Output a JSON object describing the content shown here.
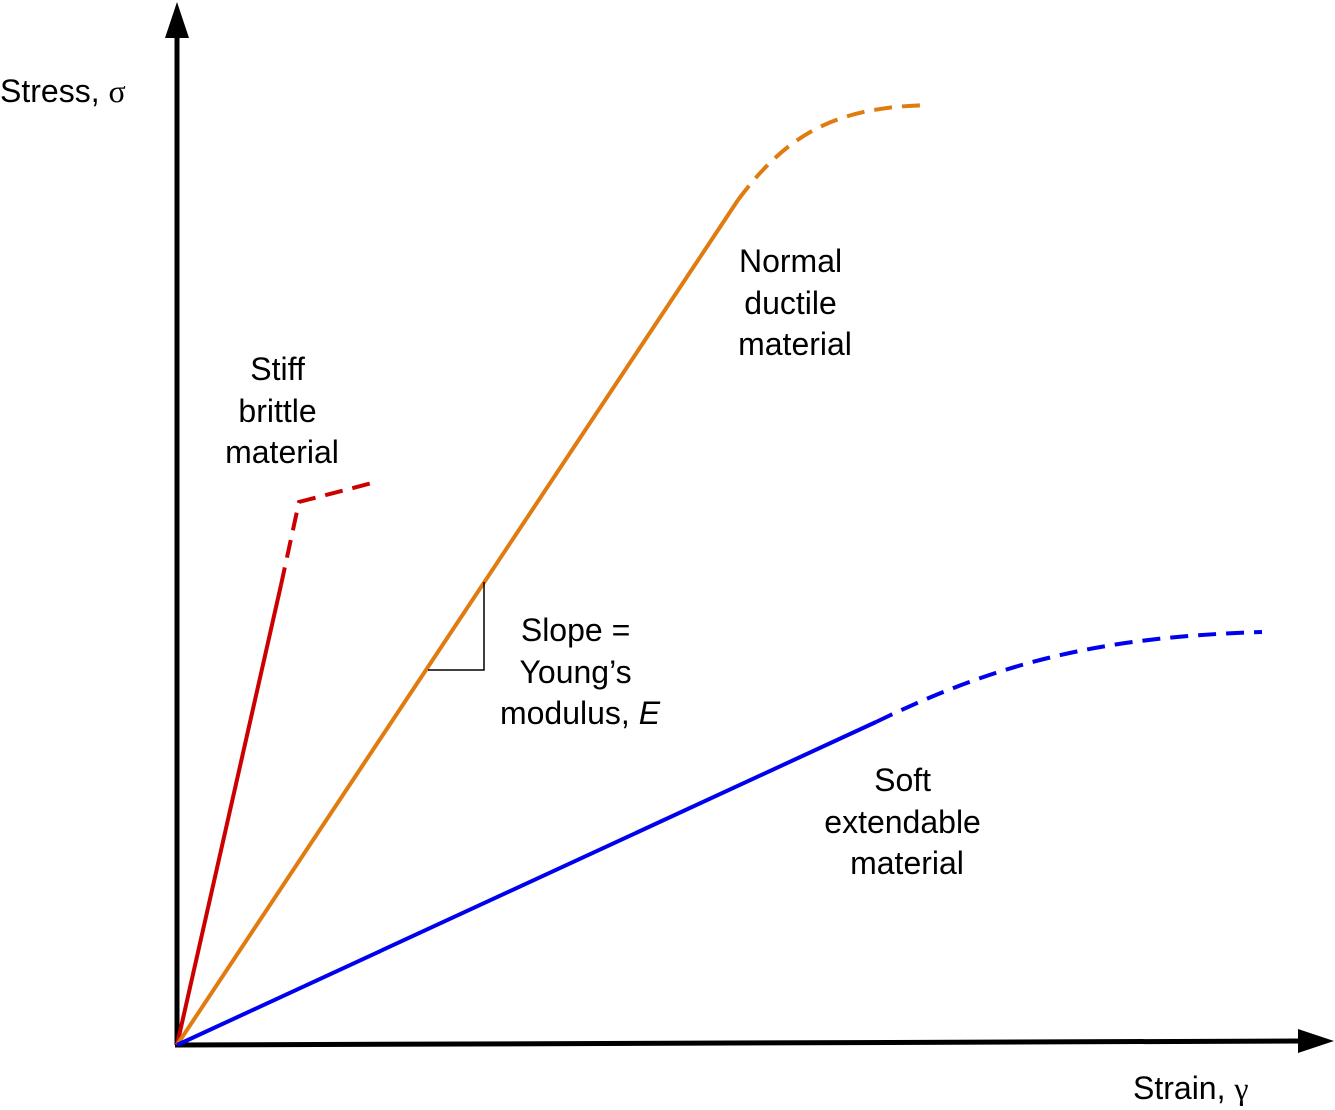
{
  "axes": {
    "y_label": "Stress, ",
    "y_symbol": "σ",
    "x_label": "Strain, ",
    "x_symbol": "γ"
  },
  "curves": {
    "brittle": {
      "color": "#cc0000",
      "line1": "Stiff",
      "line2": "brittle",
      "line3": "material"
    },
    "ductile": {
      "color": "#e07b10",
      "line1": "Normal",
      "line2": "ductile",
      "line3": "material"
    },
    "soft": {
      "color": "#0000ee",
      "line1": "Soft",
      "line2": "extendable",
      "line3": "material"
    }
  },
  "slope_annotation": {
    "line1": "Slope =",
    "line2": "Young’s",
    "line3_prefix": "modulus, ",
    "line3_symbol": "E"
  },
  "axis_color": "#000000"
}
